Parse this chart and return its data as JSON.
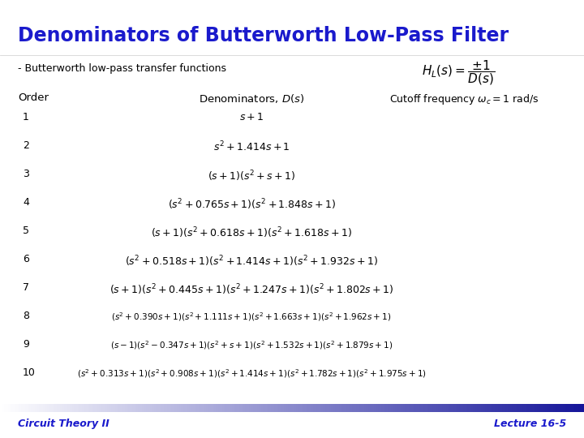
{
  "title": "Denominators of Butterworth Low-Pass Filter",
  "title_color": "#1a1acc",
  "subtitle": "- Butterworth low-pass transfer functions",
  "formula_text": "$H_L(s) = \\dfrac{\\pm 1}{D(s)}$",
  "col_order": "Order",
  "col_denom": "Denominators, $D(s)$",
  "col_cutoff": "Cutoff frequency $\\omega_c = 1$ rad/s",
  "orders": [
    "1",
    "2",
    "3",
    "4",
    "5",
    "6",
    "7",
    "8",
    "9",
    "10"
  ],
  "denominators": [
    "$s+1$",
    "$s^2+1.414s+1$",
    "$(s+1)(s^2+s+1)$",
    "$(s^2+0.765s+1)(s^2+1.848s+1)$",
    "$(s+1)(s^2+0.618s+1)(s^2+1.618s+1)$",
    "$(s^2+0.518s+1)(s^2+1.414s+1)(s^2+1.932s+1)$",
    "$(s+1)(s^2+0.445s+1)(s^2+1.247s+1)(s^2+1.802s+1)$",
    "$(s^2+0.390s+1)(s^2+1.111s+1)(s^2+1.663s+1)(s^2+1.962s+1)$",
    "$(s-1)(s^2-0.347s+1)(s^2+s+1)(s^2+1.532s+1)(s^2+1.879s+1)$",
    "$(s^2+0.313s+1)(s^2+0.908s+1)(s^2+1.414s+1)(s^2+1.782s+1)(s^2+1.975s+1)$"
  ],
  "footer_left": "Circuit Theory II",
  "footer_right": "Lecture 16-5",
  "footer_color": "#1a1acc",
  "bg_color": "#ffffff",
  "text_color": "#000000",
  "title_fontsize": 17,
  "subtitle_fontsize": 9,
  "header_fontsize": 9.5,
  "row_fontsize": 9,
  "row_fontsize_large": 7.5,
  "footer_fontsize": 9
}
